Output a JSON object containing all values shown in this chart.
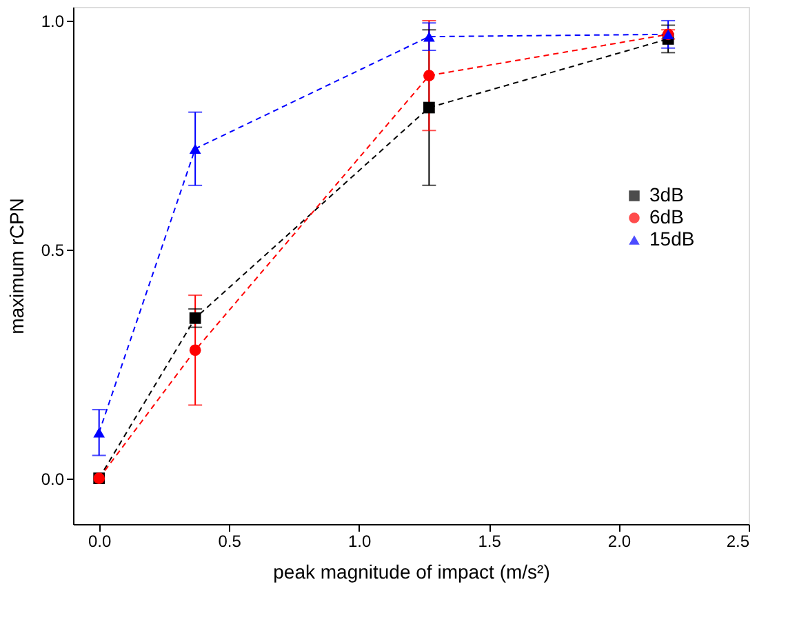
{
  "chart_data": {
    "type": "line",
    "xlabel": "peak magnitude of impact (m/s²)",
    "ylabel": "maximum rCPN",
    "x": [
      0,
      0.37,
      1.27,
      2.19
    ],
    "xlim": [
      -0.1,
      2.5
    ],
    "xticks": [
      {
        "value": 0,
        "label": "0.0"
      },
      0.5,
      {
        "value": 1,
        "label": "1.0"
      },
      1.5,
      {
        "value": 2,
        "label": "2.0"
      },
      2.5
    ],
    "ylim": [
      -0.1,
      1.03
    ],
    "yticks": [
      {
        "value": 0,
        "label": "0.0"
      },
      0.5,
      {
        "value": 1,
        "label": "1.0"
      }
    ],
    "grid": false,
    "legend": "top right",
    "line_style": "dashed",
    "series": [
      {
        "name": "3dB",
        "color": "#000000",
        "marker": "square",
        "values": [
          0,
          0.35,
          0.81,
          0.96
        ],
        "errors": [
          null,
          0.02,
          0.17,
          0.03
        ]
      },
      {
        "name": "6dB",
        "color": "#ff0000",
        "marker": "circle",
        "values": [
          0,
          0.28,
          0.88,
          0.97
        ],
        "errors": [
          null,
          0.12,
          0.12,
          0.01
        ]
      },
      {
        "name": "15dB",
        "color": "#0000ff",
        "marker": "triangle",
        "values": [
          0.1,
          0.72,
          0.965,
          0.97
        ],
        "errors": [
          0.05,
          0.08,
          0.03,
          0.03
        ]
      }
    ]
  }
}
